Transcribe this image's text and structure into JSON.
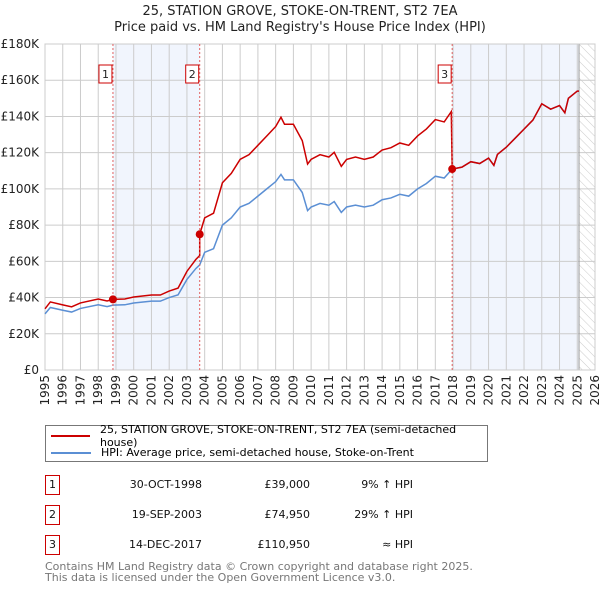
{
  "chart_data": {
    "type": "line",
    "title": "25, STATION GROVE, STOKE-ON-TRENT, ST2 7EA",
    "subtitle": "Price paid vs. HM Land Registry's House Price Index (HPI)",
    "xlim": [
      1995,
      2026
    ],
    "ylim": [
      0,
      180000
    ],
    "yticks": [
      0,
      20000,
      40000,
      60000,
      80000,
      100000,
      120000,
      140000,
      160000,
      180000
    ],
    "ytick_labels": [
      "£0",
      "£20K",
      "£40K",
      "£60K",
      "£80K",
      "£100K",
      "£120K",
      "£140K",
      "£160K",
      "£180K"
    ],
    "xticks": [
      "1995",
      "1996",
      "1997",
      "1998",
      "1999",
      "2000",
      "2001",
      "2002",
      "2003",
      "2004",
      "2005",
      "2006",
      "2007",
      "2008",
      "2009",
      "2010",
      "2011",
      "2012",
      "2013",
      "2014",
      "2015",
      "2016",
      "2017",
      "2018",
      "2019",
      "2020",
      "2021",
      "2022",
      "2023",
      "2024",
      "2025",
      "2026"
    ],
    "grid": true,
    "data_end": 2025.1,
    "series": [
      {
        "name": "25, STATION GROVE, STOKE-ON-TRENT, ST2 7EA (semi-detached house)",
        "color": "#cc0000",
        "derived": "hpi-scaled-by-sales"
      },
      {
        "name": "HPI: Average price, semi-detached house, Stoke-on-Trent",
        "color": "#5b8fd4",
        "x": [
          1995.0,
          1995.3,
          1996,
          1996.5,
          1997,
          1998,
          1998.5,
          1998.83,
          1999.5,
          2000,
          2001,
          2001.5,
          2002,
          2002.5,
          2003,
          2003.5,
          2003.72,
          2004,
          2004.5,
          2005,
          2005.5,
          2006,
          2006.5,
          2007,
          2007.5,
          2008,
          2008.3,
          2008.5,
          2009,
          2009.5,
          2009.8,
          2010,
          2010.5,
          2011,
          2011.3,
          2011.7,
          2012,
          2012.5,
          2013,
          2013.5,
          2014,
          2014.5,
          2015,
          2015.5,
          2016,
          2016.5,
          2017,
          2017.5,
          2017.95,
          2018.5,
          2019,
          2019.5,
          2020,
          2020.3,
          2020.5,
          2021,
          2021.5,
          2022,
          2022.5,
          2023,
          2023.5,
          2024,
          2024.3,
          2024.5,
          2025,
          2025.1
        ],
        "y": [
          31000,
          34500,
          33000,
          32000,
          34000,
          36000,
          35000,
          35800,
          36000,
          37000,
          38000,
          38000,
          40000,
          41500,
          50000,
          56000,
          58000,
          65000,
          67000,
          80000,
          84000,
          90000,
          92000,
          96000,
          100000,
          104000,
          108000,
          105000,
          105000,
          98000,
          88000,
          90000,
          92000,
          91000,
          93000,
          87000,
          90000,
          91000,
          90000,
          91000,
          94000,
          95000,
          97000,
          96000,
          100000,
          103000,
          107000,
          106000,
          110950,
          112000,
          115000,
          114000,
          117000,
          113000,
          119000,
          123000,
          128000,
          133000,
          138000,
          147000,
          144000,
          146000,
          142000,
          150000,
          154000,
          154000
        ]
      }
    ],
    "sales": [
      {
        "label": "1",
        "x": 2003.0,
        "date_x": 1998.83,
        "date": "30-OCT-1998",
        "price": 39000,
        "price_label": "£39,000",
        "hpi": "9% ↑ HPI"
      },
      {
        "label": "2",
        "date_x": 2003.72,
        "date": "19-SEP-2003",
        "price": 74950,
        "price_label": "£74,950",
        "hpi": "29% ↑ HPI"
      },
      {
        "label": "3",
        "date_x": 2017.95,
        "date": "14-DEC-2017",
        "price": 110950,
        "price_label": "£110,950",
        "hpi": "≈ HPI"
      }
    ]
  },
  "footer": {
    "line1": "Contains HM Land Registry data © Crown copyright and database right 2025.",
    "line2": "This data is licensed under the Open Government Licence v3.0."
  }
}
